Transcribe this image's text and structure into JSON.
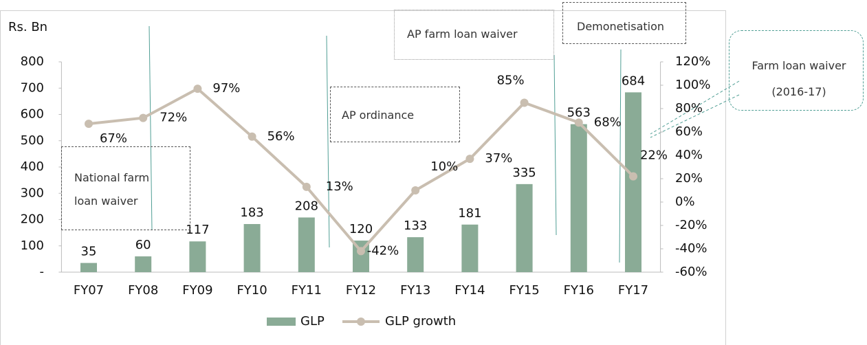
{
  "chart_data": {
    "type": "bar-line",
    "y_axis_label": "Rs. Bn",
    "categories": [
      "FY07",
      "FY08",
      "FY09",
      "FY10",
      "FY11",
      "FY12",
      "FY13",
      "FY14",
      "FY15",
      "FY16",
      "FY17"
    ],
    "series": [
      {
        "name": "GLP",
        "type": "bar",
        "color": "#8aab96",
        "values": [
          35,
          60,
          117,
          183,
          208,
          120,
          133,
          181,
          335,
          563,
          684
        ]
      },
      {
        "name": "GLP growth",
        "type": "line",
        "axis": "y2",
        "color": "#c9beb0",
        "values": [
          67,
          72,
          97,
          56,
          13,
          -42,
          10,
          37,
          85,
          68,
          22
        ],
        "value_labels": [
          "67%",
          "72%",
          "97%",
          "56%",
          "13%",
          "-42%",
          "10%",
          "37%",
          "85%",
          "68%",
          "22%"
        ]
      }
    ],
    "ylim": [
      0,
      800
    ],
    "yticks": [
      {
        "value": 0,
        "label": "-"
      },
      100,
      200,
      300,
      400,
      500,
      600,
      700,
      800
    ],
    "y2lim": [
      -60,
      120
    ],
    "y2ticks": [
      {
        "value": -60,
        "label": "-60%"
      },
      {
        "value": -40,
        "label": "-40%"
      },
      {
        "value": -20,
        "label": "-20%"
      },
      {
        "value": 0,
        "label": "0%"
      },
      {
        "value": 20,
        "label": "20%"
      },
      {
        "value": 40,
        "label": "40%"
      },
      {
        "value": 60,
        "label": "60%"
      },
      {
        "value": 80,
        "label": "80%"
      },
      {
        "value": 100,
        "label": "100%"
      },
      {
        "value": 120,
        "label": "120%"
      }
    ],
    "annotations": [
      "National farm loan waiver",
      "AP ordinance",
      "AP farm loan waiver",
      "Demonetisation",
      "Farm loan waiver (2016-17)"
    ]
  }
}
